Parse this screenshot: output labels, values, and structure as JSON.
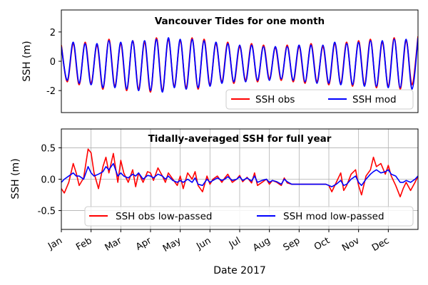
{
  "chart_data": [
    {
      "type": "line",
      "title": "Vancouver Tides for one month",
      "xlabel": "",
      "ylabel": "SSH (m)",
      "ylim": [
        -3.5,
        3.5
      ],
      "yticks": [
        -2,
        0,
        2
      ],
      "grid": false,
      "legend": "bottom-right",
      "series": [
        {
          "name": "SSH obs",
          "color": "#ff0000"
        },
        {
          "name": "SSH mod",
          "color": "#0000ff"
        }
      ],
      "x_day": [
        0.0,
        0.5,
        1.0,
        1.5,
        2.0,
        2.5,
        3.0,
        3.5,
        4.0,
        4.5,
        5.0,
        5.5,
        6.0,
        6.5,
        7.0,
        7.5,
        8.0,
        8.5,
        9.0,
        9.5,
        10.0,
        10.5,
        11.0,
        11.5,
        12.0,
        12.5,
        13.0,
        13.5,
        14.0,
        14.5,
        15.0,
        15.5,
        16.0,
        16.5,
        17.0,
        17.5,
        18.0,
        18.5,
        19.0,
        19.5,
        20.0,
        20.5,
        21.0,
        21.5,
        22.0,
        22.5,
        23.0,
        23.5,
        24.0,
        24.5,
        25.0,
        25.5,
        26.0,
        26.5,
        27.0,
        27.5,
        28.0,
        28.5,
        29.0,
        29.5,
        30.0
      ],
      "obs_values": [
        1.1,
        -1.4,
        1.2,
        -1.6,
        1.3,
        -1.5,
        1.1,
        -1.9,
        1.5,
        -1.7,
        1.2,
        -2.0,
        1.4,
        -1.9,
        1.3,
        -2.1,
        1.6,
        -2.0,
        1.5,
        -1.7,
        1.4,
        -1.8,
        1.6,
        -1.9,
        1.5,
        -1.6,
        1.2,
        -1.4,
        1.3,
        -1.5,
        1.0,
        -1.3,
        1.2,
        -1.4,
        1.1,
        -1.2,
        0.9,
        -1.3,
        1.1,
        -1.4,
        1.0,
        -1.5,
        1.2,
        -1.4,
        1.0,
        -1.6,
        1.2,
        -1.5,
        1.3,
        -1.7,
        1.4,
        -1.6,
        1.5,
        -1.8,
        1.3,
        -1.7,
        1.6,
        -1.9,
        1.4,
        -1.6,
        1.7
      ],
      "mod_values": [
        1.0,
        -1.3,
        1.3,
        -1.5,
        1.2,
        -1.6,
        1.2,
        -1.8,
        1.4,
        -1.8,
        1.3,
        -1.9,
        1.4,
        -2.0,
        1.4,
        -2.0,
        1.5,
        -2.1,
        1.6,
        -1.8,
        1.5,
        -1.9,
        1.5,
        -1.8,
        1.4,
        -1.7,
        1.3,
        -1.5,
        1.2,
        -1.4,
        1.1,
        -1.4,
        1.1,
        -1.3,
        1.0,
        -1.3,
        1.0,
        -1.2,
        1.0,
        -1.3,
        1.1,
        -1.4,
        1.1,
        -1.5,
        1.1,
        -1.5,
        1.3,
        -1.6,
        1.2,
        -1.6,
        1.3,
        -1.7,
        1.4,
        -1.7,
        1.4,
        -1.8,
        1.5,
        -1.8,
        1.5,
        -1.9,
        1.6
      ]
    },
    {
      "type": "line",
      "title": "Tidally-averaged SSH for full year",
      "xlabel": "Date 2017",
      "ylabel": "SSH (m)",
      "ylim": [
        -0.8,
        0.8
      ],
      "yticks": [
        -0.5,
        0.0,
        0.5
      ],
      "xticks": [
        "Jan",
        "Feb",
        "Mar",
        "Apr",
        "May",
        "Jun",
        "Jul",
        "Aug",
        "Sep",
        "Oct",
        "Nov",
        "Dec"
      ],
      "grid": true,
      "legend": "bottom",
      "series": [
        {
          "name": "SSH obs low-passed",
          "color": "#ff0000"
        },
        {
          "name": "SSH mod low-passed",
          "color": "#0000ff"
        }
      ],
      "x_month": [
        0.0,
        0.1,
        0.25,
        0.4,
        0.5,
        0.6,
        0.75,
        0.9,
        1.0,
        1.1,
        1.25,
        1.4,
        1.5,
        1.6,
        1.75,
        1.9,
        2.0,
        2.1,
        2.25,
        2.4,
        2.5,
        2.6,
        2.75,
        2.9,
        3.0,
        3.1,
        3.25,
        3.4,
        3.5,
        3.6,
        3.75,
        3.9,
        4.0,
        4.1,
        4.25,
        4.4,
        4.5,
        4.6,
        4.75,
        4.9,
        5.0,
        5.1,
        5.25,
        5.4,
        5.5,
        5.6,
        5.75,
        5.9,
        6.0,
        6.1,
        6.25,
        6.4,
        6.5,
        6.6,
        6.75,
        6.9,
        7.0,
        7.1,
        7.25,
        7.4,
        7.5,
        7.6,
        7.75,
        7.9,
        8.0,
        8.1,
        8.25,
        8.4,
        8.5,
        8.6,
        8.75,
        8.9,
        9.0,
        9.1,
        9.25,
        9.4,
        9.5,
        9.6,
        9.75,
        9.9,
        10.0,
        10.1,
        10.25,
        10.4,
        10.5,
        10.6,
        10.75,
        10.9,
        11.0,
        11.1,
        11.25,
        11.4,
        11.5,
        11.6,
        11.75,
        11.9,
        12.0
      ],
      "obs_values": [
        -0.15,
        -0.22,
        -0.05,
        0.25,
        0.1,
        -0.1,
        0.02,
        0.48,
        0.42,
        0.1,
        -0.15,
        0.2,
        0.35,
        0.1,
        0.41,
        -0.05,
        0.3,
        0.1,
        -0.05,
        0.15,
        -0.12,
        0.1,
        -0.05,
        0.12,
        0.1,
        -0.02,
        0.18,
        0.05,
        -0.05,
        0.1,
        0.0,
        -0.1,
        0.05,
        -0.15,
        0.1,
        0.0,
        0.12,
        -0.1,
        -0.2,
        0.05,
        -0.08,
        0.0,
        0.05,
        -0.05,
        0.02,
        0.08,
        -0.05,
        0.0,
        0.06,
        -0.04,
        0.03,
        -0.06,
        0.1,
        -0.1,
        -0.05,
        0.0,
        -0.08,
        -0.02,
        -0.05,
        -0.1,
        0.02,
        -0.06,
        -0.08,
        -0.08,
        -0.08,
        -0.08,
        -0.08,
        -0.08,
        -0.08,
        -0.08,
        -0.08,
        -0.08,
        -0.1,
        -0.2,
        -0.05,
        0.1,
        -0.18,
        -0.1,
        0.08,
        0.15,
        -0.1,
        -0.25,
        0.05,
        0.15,
        0.35,
        0.2,
        0.25,
        0.08,
        0.22,
        0.05,
        -0.1,
        -0.28,
        -0.15,
        -0.05,
        -0.18,
        -0.05,
        0.05
      ],
      "mod_values": [
        -0.05,
        0.0,
        0.05,
        0.1,
        0.05,
        0.05,
        0.0,
        0.2,
        0.1,
        0.05,
        0.08,
        0.12,
        0.2,
        0.15,
        0.25,
        0.05,
        0.1,
        0.05,
        0.02,
        0.08,
        0.05,
        0.1,
        0.0,
        0.06,
        0.05,
        0.02,
        0.08,
        0.05,
        0.0,
        0.05,
        -0.02,
        -0.05,
        -0.02,
        -0.05,
        0.0,
        -0.05,
        0.02,
        -0.08,
        -0.1,
        0.0,
        -0.05,
        -0.02,
        0.02,
        -0.02,
        0.0,
        0.04,
        -0.02,
        0.0,
        0.04,
        -0.02,
        0.02,
        -0.03,
        0.05,
        -0.05,
        -0.02,
        0.0,
        -0.05,
        -0.02,
        -0.04,
        -0.08,
        0.0,
        -0.04,
        -0.08,
        -0.08,
        -0.08,
        -0.08,
        -0.08,
        -0.08,
        -0.08,
        -0.08,
        -0.08,
        -0.08,
        -0.1,
        -0.12,
        -0.08,
        -0.02,
        -0.1,
        -0.08,
        0.0,
        0.05,
        -0.05,
        -0.1,
        0.0,
        0.08,
        0.12,
        0.15,
        0.1,
        0.12,
        0.15,
        0.08,
        0.05,
        -0.05,
        -0.05,
        -0.02,
        -0.05,
        0.0,
        0.05
      ]
    }
  ]
}
